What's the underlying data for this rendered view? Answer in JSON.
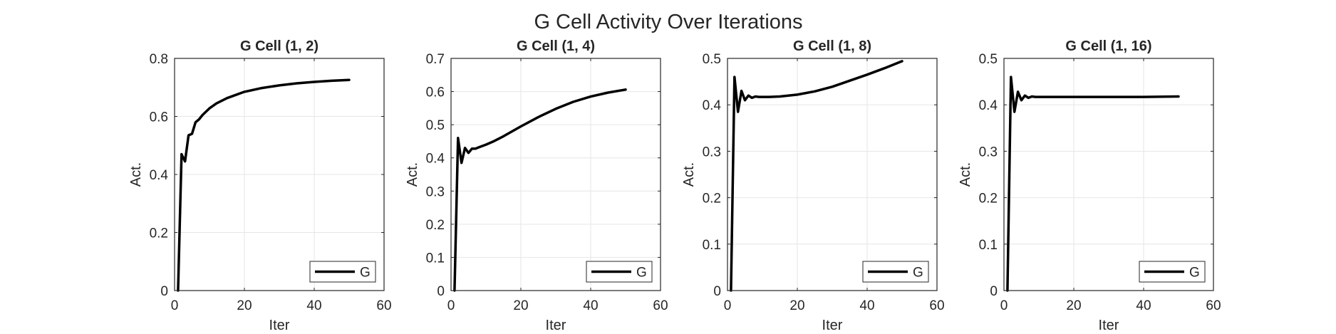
{
  "figure": {
    "title": "G Cell Activity Over Iterations",
    "background": "#ffffff",
    "line_color": "#000000",
    "grid_color": "#e6e6e6",
    "axis_color": "#262626"
  },
  "chart_data": [
    {
      "type": "line",
      "title": "G Cell (1, 2)",
      "xlabel": "Iter",
      "ylabel": "Act.",
      "xlim": [
        0,
        60
      ],
      "ylim": [
        0,
        0.8
      ],
      "xticks": [
        0,
        20,
        40,
        60
      ],
      "xtick_labels": [
        "0",
        "20",
        "40",
        "60"
      ],
      "yticks": [
        0,
        0.2,
        0.4,
        0.6,
        0.8
      ],
      "ytick_labels": [
        "0",
        "0.2",
        "0.4",
        "0.6",
        "0.8"
      ],
      "grid": true,
      "legend": "bottom-right",
      "series": [
        {
          "name": "G",
          "color": "#000000",
          "x": [
            1,
            2,
            3,
            4,
            5,
            6,
            7,
            8,
            10,
            12,
            15,
            20,
            25,
            30,
            35,
            40,
            45,
            50
          ],
          "y": [
            0,
            0.47,
            0.445,
            0.535,
            0.54,
            0.58,
            0.59,
            0.605,
            0.628,
            0.645,
            0.663,
            0.685,
            0.698,
            0.707,
            0.714,
            0.719,
            0.723,
            0.726
          ]
        }
      ]
    },
    {
      "type": "line",
      "title": "G Cell (1, 4)",
      "xlabel": "Iter",
      "ylabel": "Act.",
      "xlim": [
        0,
        60
      ],
      "ylim": [
        0,
        0.7
      ],
      "xticks": [
        0,
        20,
        40,
        60
      ],
      "xtick_labels": [
        "0",
        "20",
        "40",
        "60"
      ],
      "yticks": [
        0,
        0.1,
        0.2,
        0.3,
        0.4,
        0.5,
        0.6,
        0.7
      ],
      "ytick_labels": [
        "0",
        "0.1",
        "0.2",
        "0.3",
        "0.4",
        "0.5",
        "0.6",
        "0.7"
      ],
      "grid": true,
      "legend": "bottom-right",
      "series": [
        {
          "name": "G",
          "color": "#000000",
          "x": [
            1,
            2,
            3,
            4,
            5,
            6,
            7,
            8,
            10,
            12,
            15,
            20,
            25,
            30,
            35,
            40,
            45,
            50
          ],
          "y": [
            0,
            0.46,
            0.385,
            0.43,
            0.415,
            0.428,
            0.428,
            0.432,
            0.44,
            0.449,
            0.465,
            0.495,
            0.523,
            0.548,
            0.569,
            0.585,
            0.597,
            0.606
          ]
        }
      ]
    },
    {
      "type": "line",
      "title": "G Cell (1, 8)",
      "xlabel": "Iter",
      "ylabel": "Act.",
      "xlim": [
        0,
        60
      ],
      "ylim": [
        0,
        0.5
      ],
      "xticks": [
        0,
        20,
        40,
        60
      ],
      "xtick_labels": [
        "0",
        "20",
        "40",
        "60"
      ],
      "yticks": [
        0,
        0.1,
        0.2,
        0.3,
        0.4,
        0.5
      ],
      "ytick_labels": [
        "0",
        "0.1",
        "0.2",
        "0.3",
        "0.4",
        "0.5"
      ],
      "grid": true,
      "legend": "bottom-right",
      "series": [
        {
          "name": "G",
          "color": "#000000",
          "x": [
            1,
            2,
            3,
            4,
            5,
            6,
            7,
            8,
            9,
            10,
            12,
            15,
            20,
            25,
            30,
            35,
            40,
            45,
            50
          ],
          "y": [
            0,
            0.46,
            0.385,
            0.43,
            0.41,
            0.42,
            0.415,
            0.418,
            0.417,
            0.417,
            0.417,
            0.418,
            0.422,
            0.429,
            0.439,
            0.452,
            0.465,
            0.479,
            0.494
          ]
        }
      ]
    },
    {
      "type": "line",
      "title": "G Cell (1, 16)",
      "xlabel": "Iter",
      "ylabel": "Act.",
      "xlim": [
        0,
        60
      ],
      "ylim": [
        0,
        0.5
      ],
      "xticks": [
        0,
        20,
        40,
        60
      ],
      "xtick_labels": [
        "0",
        "20",
        "40",
        "60"
      ],
      "yticks": [
        0,
        0.1,
        0.2,
        0.3,
        0.4,
        0.5
      ],
      "ytick_labels": [
        "0",
        "0.1",
        "0.2",
        "0.3",
        "0.4",
        "0.5"
      ],
      "grid": true,
      "legend": "bottom-right",
      "series": [
        {
          "name": "G",
          "color": "#000000",
          "x": [
            1,
            2,
            3,
            4,
            5,
            6,
            7,
            8,
            9,
            10,
            12,
            15,
            20,
            30,
            40,
            50
          ],
          "y": [
            0,
            0.46,
            0.385,
            0.428,
            0.41,
            0.42,
            0.415,
            0.418,
            0.417,
            0.417,
            0.417,
            0.417,
            0.417,
            0.417,
            0.417,
            0.418
          ]
        }
      ]
    }
  ]
}
